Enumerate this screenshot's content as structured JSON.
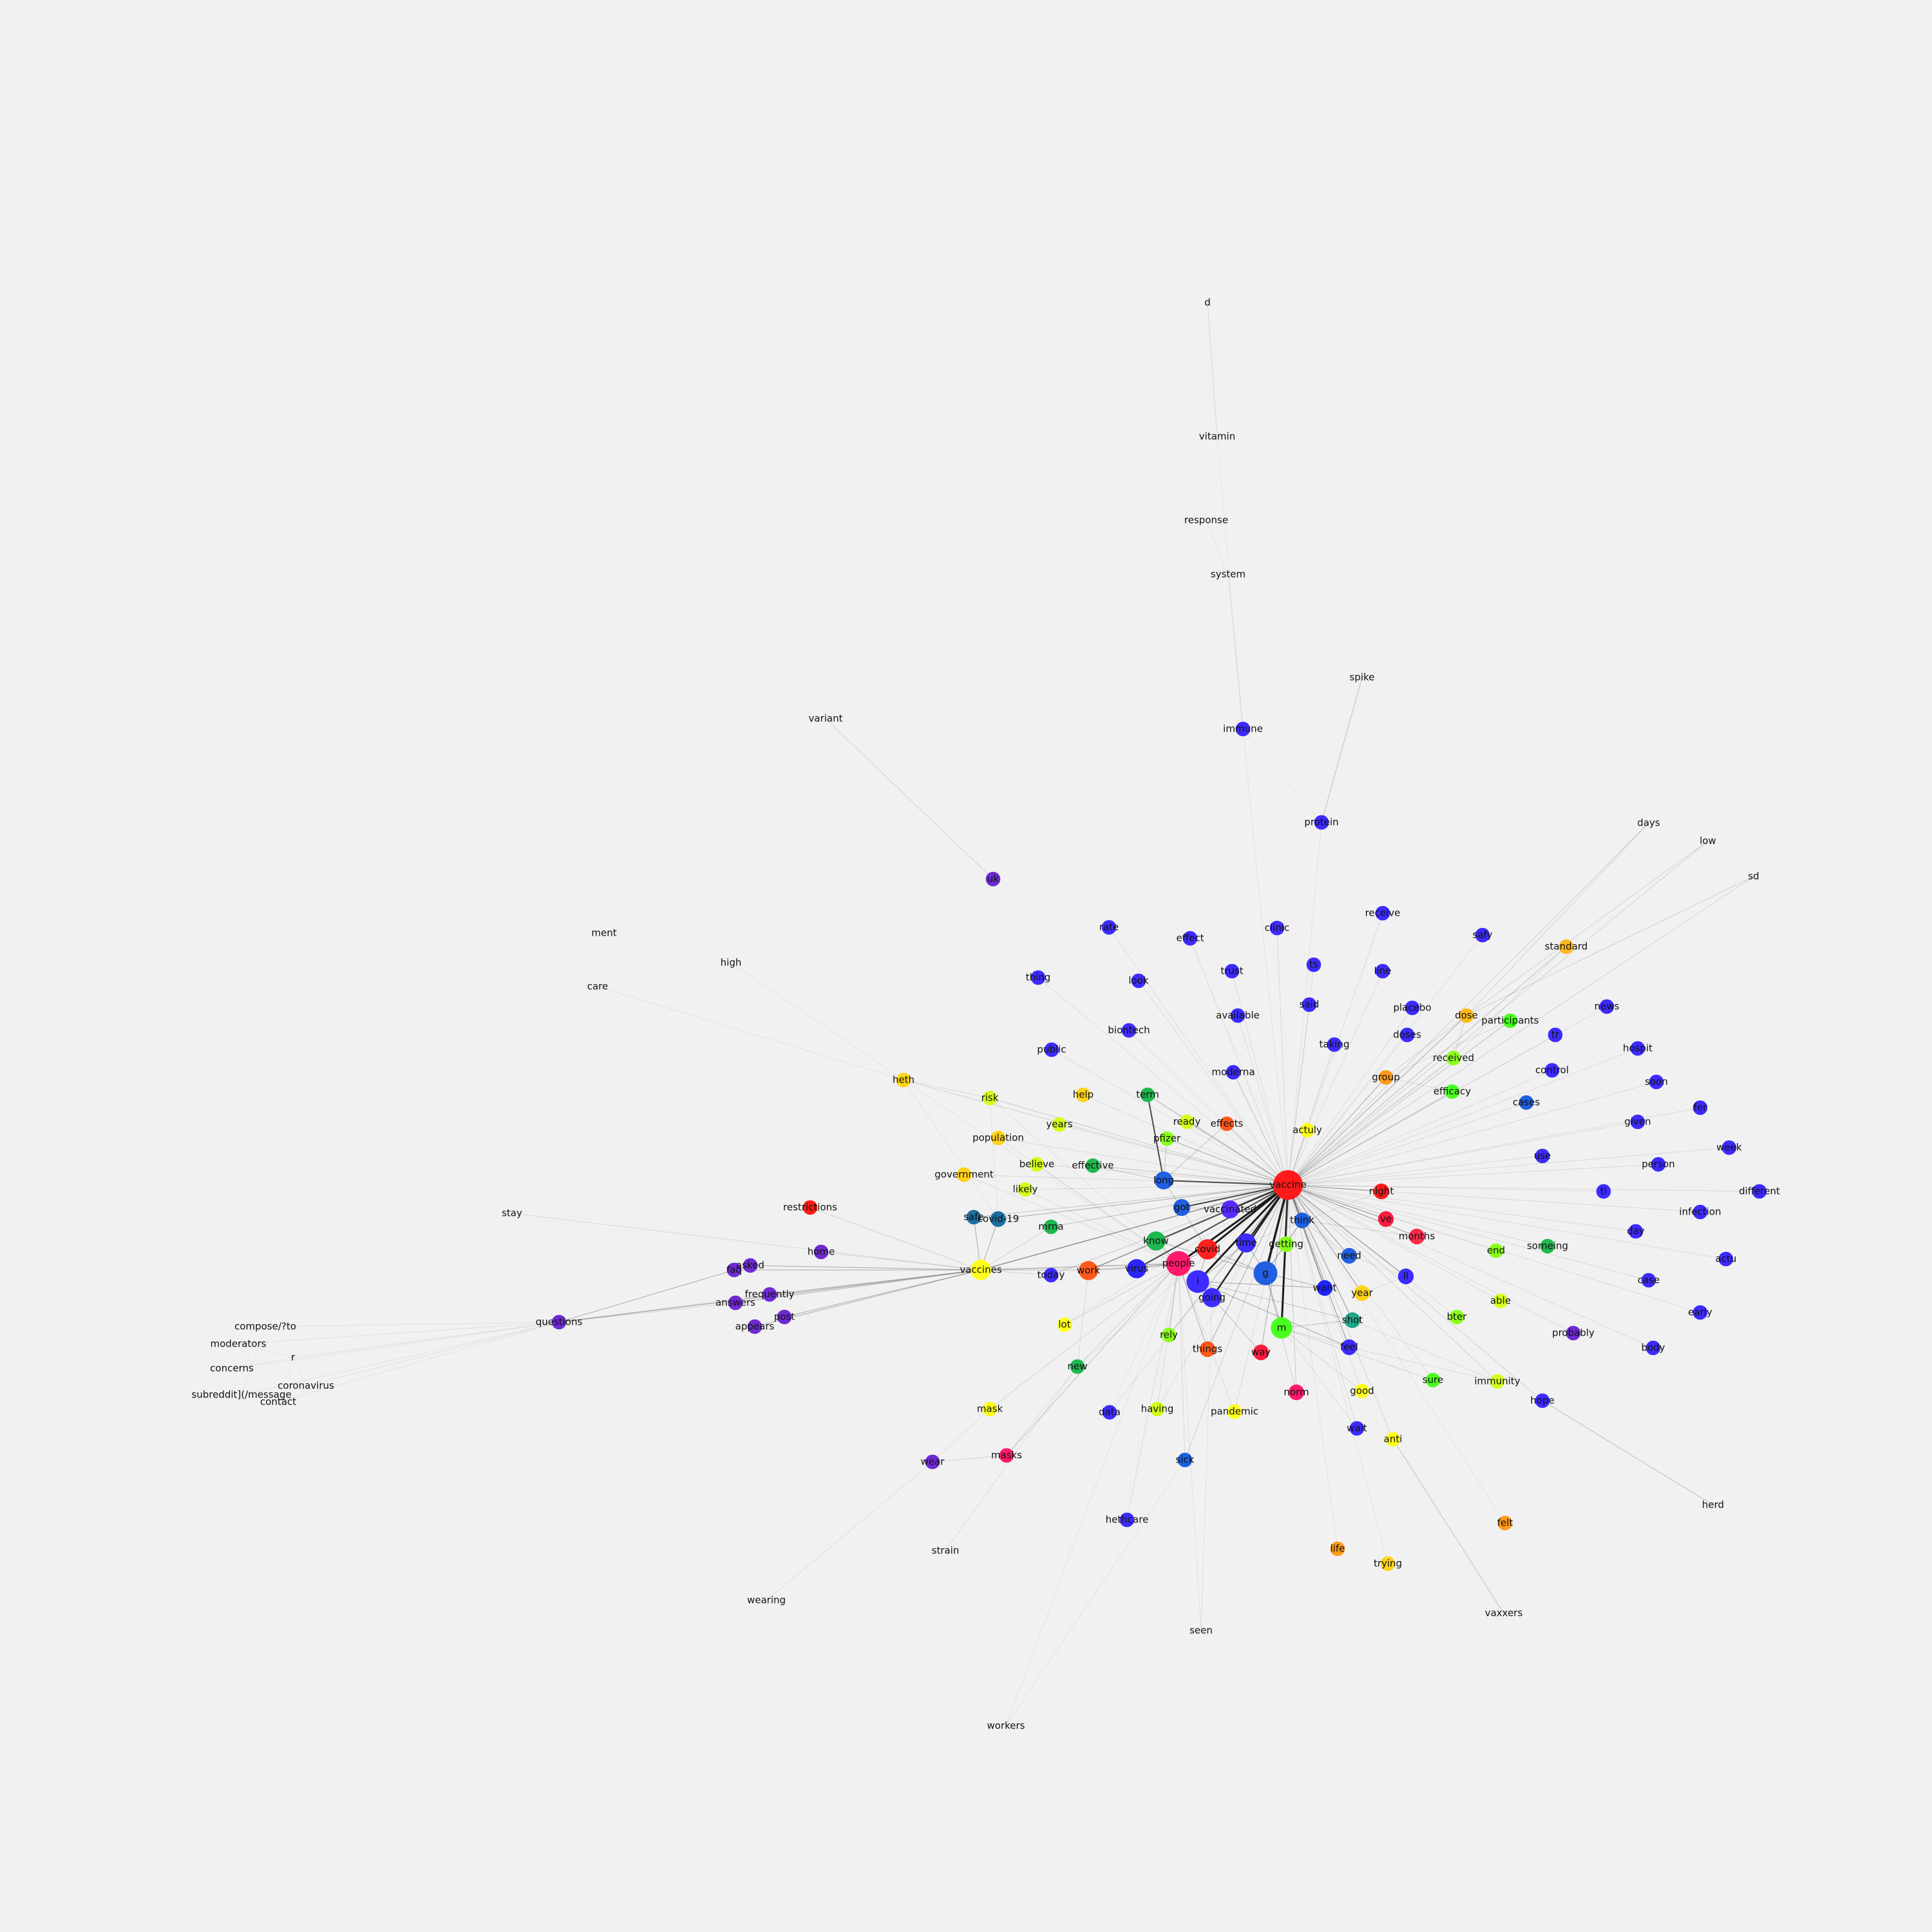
{
  "colors": {
    "background": "#f1f1f1",
    "edge": "#555555",
    "label": "#111111"
  },
  "graph": {
    "hub": "vaccine",
    "nodes": [
      {
        "label": "vaccine",
        "color": "#ff1a1a",
        "size": 2
      },
      {
        "label": "people",
        "color": "#ff1a6e",
        "size": 1.6
      },
      {
        "label": "i",
        "color": "#3d2bff",
        "size": 1.4
      },
      {
        "label": "g",
        "color": "#1f5fe0",
        "size": 1.5
      },
      {
        "label": "m",
        "color": "#49ff1f",
        "size": 1.3
      },
      {
        "label": "covid",
        "color": "#ff2020",
        "size": 1.2
      },
      {
        "label": "vaccines",
        "color": "#ffff1a",
        "size": 1.2
      },
      {
        "label": "work",
        "color": "#ff5a1a",
        "size": 1.1
      },
      {
        "label": "virus",
        "color": "#2a24ff",
        "size": 1.1
      },
      {
        "label": "know",
        "color": "#1fb84f",
        "size": 1.1
      },
      {
        "label": "time",
        "color": "#3d2bff",
        "size": 1.1
      },
      {
        "label": "going",
        "color": "#3d2bff",
        "size": 1.1
      },
      {
        "label": "long",
        "color": "#1f5fe0",
        "size": 1
      },
      {
        "label": "vaccinated",
        "color": "#5a2bff",
        "size": 1
      },
      {
        "label": "got",
        "color": "#1f5fe0",
        "size": 0.9
      },
      {
        "label": "covid-19",
        "color": "#1f6fa0",
        "size": 0.8
      },
      {
        "label": "think",
        "color": "#1f5fe0",
        "size": 0.8
      },
      {
        "label": "getting",
        "color": "#8aff1a",
        "size": 0.8
      },
      {
        "label": "need",
        "color": "#1f5fe0",
        "size": 0.8
      },
      {
        "label": "want",
        "color": "#1f24ff",
        "size": 0.8
      },
      {
        "label": "year",
        "color": "#ffd21a",
        "size": 0.8
      },
      {
        "label": "shot",
        "color": "#1fa58a",
        "size": 0.8
      },
      {
        "label": "feel",
        "color": "#3d2bff",
        "size": 0.8
      },
      {
        "label": "months",
        "color": "#ff2a4a",
        "size": 0.8
      },
      {
        "label": "night",
        "color": "#ff1a1a",
        "size": 0.8
      },
      {
        "label": "ve",
        "color": "#ff1a40",
        "size": 0.8
      },
      {
        "label": "ll",
        "color": "#3d2bff",
        "size": 0.8
      },
      {
        "label": "things",
        "color": "#ff5a1a",
        "size": 0.8
      },
      {
        "label": "way",
        "color": "#ff1a40",
        "size": 0.8
      },
      {
        "label": "norm",
        "color": "#ff1a6e",
        "size": 0.8
      },
      {
        "label": "today",
        "color": "#3d2bff",
        "size": 0.7
      },
      {
        "label": "mrna",
        "color": "#1fb84f",
        "size": 0.7
      },
      {
        "label": "sick",
        "color": "#1f5fe0",
        "size": 0.7
      },
      {
        "label": "safe",
        "color": "#1f6fa0",
        "size": 0.7
      },
      {
        "label": "moderna",
        "color": "#3d2bff",
        "size": 0.7
      },
      {
        "label": "pfizer",
        "color": "#8aff1a",
        "size": 0.7
      },
      {
        "label": "effects",
        "color": "#ff5a1a",
        "size": 0.7
      },
      {
        "label": "ready",
        "color": "#d2ff1a",
        "size": 0.7
      },
      {
        "label": "term",
        "color": "#1fb84f",
        "size": 0.7
      },
      {
        "label": "effective",
        "color": "#1fb84f",
        "size": 0.7
      },
      {
        "label": "actuly",
        "color": "#ffff1a",
        "size": 0.7
      },
      {
        "label": "group",
        "color": "#ff9a1a",
        "size": 0.7
      },
      {
        "label": "efficacy",
        "color": "#49ff1f",
        "size": 0.7
      },
      {
        "label": "received",
        "color": "#8aff1a",
        "size": 0.7
      },
      {
        "label": "dose",
        "color": "#ffb81a",
        "size": 0.7
      },
      {
        "label": "participants",
        "color": "#49ff1f",
        "size": 0.7
      },
      {
        "label": "rely",
        "color": "#8aff1a",
        "size": 0.7
      },
      {
        "label": "lot",
        "color": "#ffff1a",
        "size": 0.7
      },
      {
        "label": "new",
        "color": "#1fb84f",
        "size": 0.7
      },
      {
        "label": "good",
        "color": "#ffff1a",
        "size": 0.7
      },
      {
        "label": "sure",
        "color": "#49ff1f",
        "size": 0.7
      },
      {
        "label": "bter",
        "color": "#8aff1a",
        "size": 0.7
      },
      {
        "label": "able",
        "color": "#d2ff1a",
        "size": 0.7
      },
      {
        "label": "end",
        "color": "#8aff1a",
        "size": 0.7
      },
      {
        "label": "someing",
        "color": "#1fb84f",
        "size": 0.7
      },
      {
        "label": "immunity",
        "color": "#d2ff1a",
        "size": 0.7
      },
      {
        "label": "pandemic",
        "color": "#ffff1a",
        "size": 0.7
      },
      {
        "label": "having",
        "color": "#d2ff1a",
        "size": 0.7
      },
      {
        "label": "data",
        "color": "#3d2bff",
        "size": 0.7
      },
      {
        "label": "wait",
        "color": "#3d2bff",
        "size": 0.7
      },
      {
        "label": "anti",
        "color": "#ffff1a",
        "size": 0.7
      },
      {
        "label": "mask",
        "color": "#ffff1a",
        "size": 0.7
      },
      {
        "label": "masks",
        "color": "#ff1a6e",
        "size": 0.7
      },
      {
        "label": "wear",
        "color": "#6e2bd2",
        "size": 0.7
      },
      {
        "label": "hethcare",
        "color": "#3d2bff",
        "size": 0.7
      },
      {
        "label": "life",
        "color": "#ff9a1a",
        "size": 0.7
      },
      {
        "label": "trying",
        "color": "#ffd21a",
        "size": 0.7
      },
      {
        "label": "felt",
        "color": "#ff9a1a",
        "size": 0.7
      },
      {
        "label": "hope",
        "color": "#3d2bff",
        "size": 0.7
      },
      {
        "label": "herd",
        "color": "#3d2bff",
        "size": 0
      },
      {
        "label": "vaxxers",
        "color": "#3d2bff",
        "size": 0
      },
      {
        "label": "seen",
        "color": "#3d2bff",
        "size": 0
      },
      {
        "label": "workers",
        "color": "#3d2bff",
        "size": 0
      },
      {
        "label": "strain",
        "color": "#3d2bff",
        "size": 0
      },
      {
        "label": "wearing",
        "color": "#3d2bff",
        "size": 0
      },
      {
        "label": "probably",
        "color": "#6e2bd2",
        "size": 0.7
      },
      {
        "label": "body",
        "color": "#3d2bff",
        "size": 0.7
      },
      {
        "label": "early",
        "color": "#3d2bff",
        "size": 0.7
      },
      {
        "label": "actu",
        "color": "#3d2bff",
        "size": 0.7
      },
      {
        "label": "case",
        "color": "#3d2bff",
        "size": 0.7
      },
      {
        "label": "day",
        "color": "#3d2bff",
        "size": 0.7
      },
      {
        "label": "infection",
        "color": "#3d2bff",
        "size": 0.7
      },
      {
        "label": "different",
        "color": "#3d2bff",
        "size": 0.7
      },
      {
        "label": "ti",
        "color": "#3d2bff",
        "size": 0.7
      },
      {
        "label": "use",
        "color": "#3d2bff",
        "size": 0.7
      },
      {
        "label": "person",
        "color": "#3d2bff",
        "size": 0.7
      },
      {
        "label": "week",
        "color": "#3d2bff",
        "size": 0.7
      },
      {
        "label": "given",
        "color": "#3d2bff",
        "size": 0.7
      },
      {
        "label": "fer",
        "color": "#3d2bff",
        "size": 0.7
      },
      {
        "label": "cases",
        "color": "#1f5fe0",
        "size": 0.7
      },
      {
        "label": "soon",
        "color": "#3d2bff",
        "size": 0.7
      },
      {
        "label": "control",
        "color": "#3d2bff",
        "size": 0.7
      },
      {
        "label": "hospit",
        "color": "#3d2bff",
        "size": 0.7
      },
      {
        "label": "tr",
        "color": "#3d2bff",
        "size": 0.7
      },
      {
        "label": "news",
        "color": "#3d2bff",
        "size": 0.7
      },
      {
        "label": "standard",
        "color": "#ffb81a",
        "size": 0.7
      },
      {
        "label": "days",
        "color": "#3d2bff",
        "size": 0
      },
      {
        "label": "low",
        "color": "#3d2bff",
        "size": 0
      },
      {
        "label": "sd",
        "color": "#3d2bff",
        "size": 0
      },
      {
        "label": "safy",
        "color": "#3d2bff",
        "size": 0.7
      },
      {
        "label": "receive",
        "color": "#3d2bff",
        "size": 0.7
      },
      {
        "label": "doses",
        "color": "#3d2bff",
        "size": 0.7
      },
      {
        "label": "placebo",
        "color": "#3d2bff",
        "size": 0.7
      },
      {
        "label": "line",
        "color": "#3d2bff",
        "size": 0.7
      },
      {
        "label": "taking",
        "color": "#3d2bff",
        "size": 0.7
      },
      {
        "label": "said",
        "color": "#3d2bff",
        "size": 0.7
      },
      {
        "label": "ts",
        "color": "#3d2bff",
        "size": 0.7
      },
      {
        "label": "clinic",
        "color": "#3d2bff",
        "size": 0.7
      },
      {
        "label": "trust",
        "color": "#3d2bff",
        "size": 0.7
      },
      {
        "label": "available",
        "color": "#3d2bff",
        "size": 0.7
      },
      {
        "label": "effect",
        "color": "#3d2bff",
        "size": 0.7
      },
      {
        "label": "look",
        "color": "#3d2bff",
        "size": 0.7
      },
      {
        "label": "rate",
        "color": "#3d2bff",
        "size": 0.7
      },
      {
        "label": "thing",
        "color": "#3d2bff",
        "size": 0.7
      },
      {
        "label": "biontech",
        "color": "#3d2bff",
        "size": 0.7
      },
      {
        "label": "public",
        "color": "#3d2bff",
        "size": 0.7
      },
      {
        "label": "help",
        "color": "#ffd21a",
        "size": 0.7
      },
      {
        "label": "years",
        "color": "#d2ff1a",
        "size": 0.7
      },
      {
        "label": "risk",
        "color": "#d2ff1a",
        "size": 0.7
      },
      {
        "label": "population",
        "color": "#ffd21a",
        "size": 0.7
      },
      {
        "label": "believe",
        "color": "#d2ff1a",
        "size": 0.7
      },
      {
        "label": "likely",
        "color": "#d2ff1a",
        "size": 0.7
      },
      {
        "label": "government",
        "color": "#ffd21a",
        "size": 0.7
      },
      {
        "label": "heth",
        "color": "#ffd21a",
        "size": 0.7
      },
      {
        "label": "high",
        "color": "#ffd21a",
        "size": 0
      },
      {
        "label": "care",
        "color": "#ffd21a",
        "size": 0
      },
      {
        "label": "ment",
        "color": "#ffd21a",
        "size": 0
      },
      {
        "label": "restrictions",
        "color": "#ff1a1a",
        "size": 0.7
      },
      {
        "label": "stay",
        "color": "#3d2bff",
        "size": 0
      },
      {
        "label": "home",
        "color": "#6e2bd2",
        "size": 0.7
      },
      {
        "label": "faq",
        "color": "#6e2bd2",
        "size": 0.7
      },
      {
        "label": "asked",
        "color": "#6e2bd2",
        "size": 0.7
      },
      {
        "label": "frequently",
        "color": "#6e2bd2",
        "size": 0.7
      },
      {
        "label": "answers",
        "color": "#6e2bd2",
        "size": 0.7
      },
      {
        "label": "post",
        "color": "#6e2bd2",
        "size": 0.7
      },
      {
        "label": "appears",
        "color": "#6e2bd2",
        "size": 0.7
      },
      {
        "label": "questions",
        "color": "#6e2bd2",
        "size": 0.7
      },
      {
        "label": "compose/?to",
        "color": "#1fb84f",
        "size": 0
      },
      {
        "label": "moderators",
        "color": "#1fb84f",
        "size": 0
      },
      {
        "label": "r",
        "color": "#1fb84f",
        "size": 0
      },
      {
        "label": "concerns",
        "color": "#1fb84f",
        "size": 0
      },
      {
        "label": "coronavirus",
        "color": "#1fb84f",
        "size": 0
      },
      {
        "label": "subreddit](/message",
        "color": "#1fb84f",
        "size": 0
      },
      {
        "label": "contact",
        "color": "#1fb84f",
        "size": 0
      },
      {
        "label": "uk",
        "color": "#6e2bd2",
        "size": 0.7
      },
      {
        "label": "variant",
        "color": "#6e2bd2",
        "size": 0
      },
      {
        "label": "protein",
        "color": "#3d2bff",
        "size": 0.7
      },
      {
        "label": "spike",
        "color": "#3d2bff",
        "size": 0
      },
      {
        "label": "immune",
        "color": "#3d2bff",
        "size": 0.7
      },
      {
        "label": "system",
        "color": "#3d2bff",
        "size": 0
      },
      {
        "label": "response",
        "color": "#3d2bff",
        "size": 0
      },
      {
        "label": "vitamin",
        "color": "#3d2bff",
        "size": 0
      },
      {
        "label": "d",
        "color": "#3d2bff",
        "size": 0
      }
    ]
  }
}
